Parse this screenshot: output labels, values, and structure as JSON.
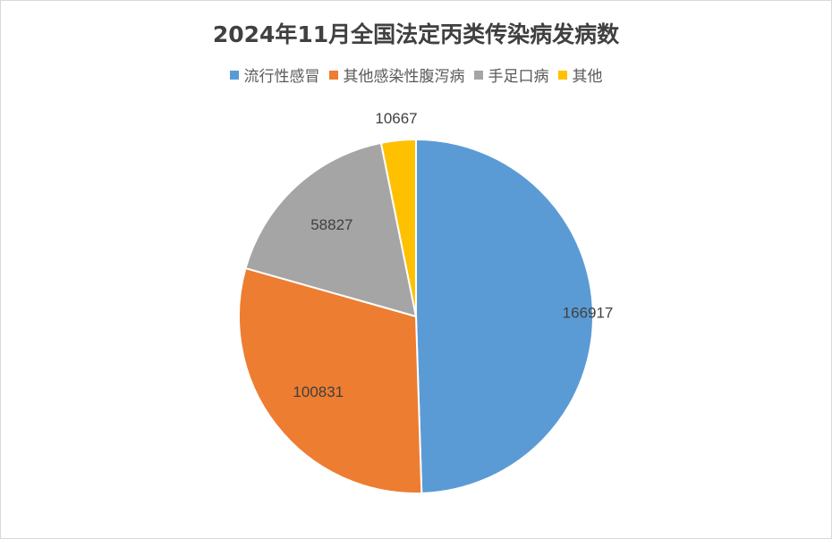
{
  "chart_data": {
    "type": "pie",
    "title": "2024年11月全国法定丙类传染病发病数",
    "categories": [
      "流行性感冒",
      "其他感染性腹泻病",
      "手足口病",
      "其他"
    ],
    "values": [
      166917,
      100831,
      58827,
      10667
    ],
    "colors": [
      "#5B9BD5",
      "#ED7D31",
      "#A5A5A5",
      "#FFC000"
    ],
    "legend_position": "top",
    "start_angle_deg": 0,
    "direction": "clockwise"
  }
}
